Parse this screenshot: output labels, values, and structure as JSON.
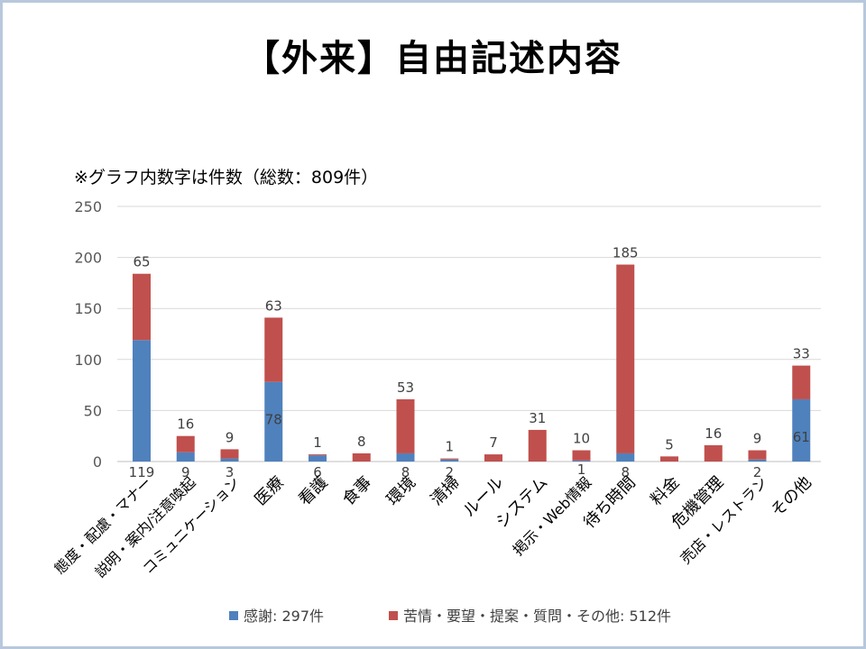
{
  "slide_title": "【外来】自由記述内容",
  "note": "※グラフ内数字は件数（総数：809件）",
  "colors": {
    "series1": "#4f81bd",
    "series2": "#c0504d"
  },
  "chart_data": {
    "type": "bar",
    "stacked": true,
    "categories": [
      "態度・配慮・マナー",
      "説明・案内/注意喚起",
      "コミュニケーション",
      "医療",
      "看護",
      "食事",
      "環境",
      "清掃",
      "ルール",
      "システム",
      "掲示・Web情報",
      "待ち時間",
      "料金",
      "危機管理",
      "売店・レストラン",
      "その他"
    ],
    "series": [
      {
        "name": "感謝: 297件",
        "values": [
          119,
          9,
          3,
          78,
          6,
          0,
          8,
          2,
          0,
          0,
          1,
          8,
          0,
          0,
          2,
          61
        ],
        "labels": [
          "119",
          "9",
          "3",
          "78",
          "6",
          "",
          "8",
          "2",
          "",
          "",
          "1",
          "8",
          "",
          "",
          "2",
          "61"
        ]
      },
      {
        "name": "苦情・要望・提案・質問・その他: 512件",
        "values": [
          65,
          16,
          9,
          63,
          1,
          8,
          53,
          1,
          7,
          31,
          10,
          185,
          5,
          16,
          9,
          33
        ],
        "labels": [
          "65",
          "16",
          "9",
          "63",
          "1",
          "8",
          "53",
          "1",
          "7",
          "31",
          "10",
          "185",
          "5",
          "16",
          "9",
          "33"
        ]
      }
    ],
    "ylim": [
      0,
      250
    ],
    "yticks": [
      "0",
      "50",
      "100",
      "150",
      "200",
      "250"
    ],
    "grid": true,
    "legend": "bottom"
  }
}
